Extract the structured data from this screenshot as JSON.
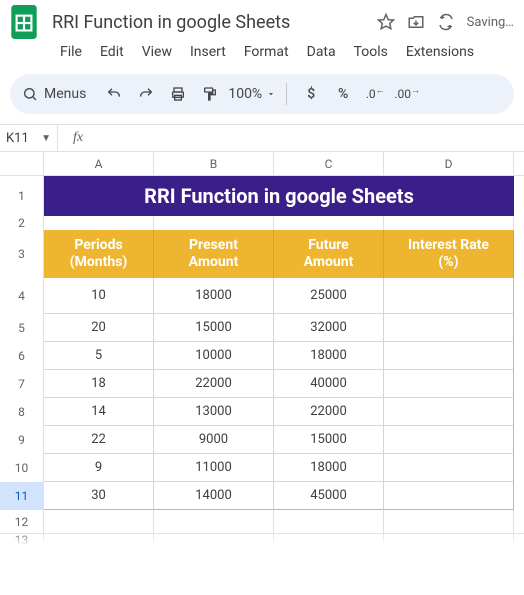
{
  "app": {
    "title": "RRI Function in google Sheets",
    "status": "Saving…",
    "menus": [
      "File",
      "Edit",
      "View",
      "Insert",
      "Format",
      "Data",
      "Tools",
      "Extensions"
    ]
  },
  "toolbar": {
    "menus_label": "Menus",
    "zoom": "100%"
  },
  "namebox": {
    "ref": "K11"
  },
  "formula_bar": {
    "value": ""
  },
  "columns": [
    "A",
    "B",
    "C",
    "D"
  ],
  "colors": {
    "banner_bg": "#3a1f8a",
    "banner_text": "#ffffff",
    "header_bg": "#edb530",
    "header_text": "#ffffff",
    "table_border": "#edd595",
    "selected_row_bg": "#d3e3fd",
    "selected_row_text": "#0b57d0"
  },
  "sheet": {
    "banner_text": "RRI Function in google Sheets",
    "headers": [
      "Periods\n(Months)",
      "Present\nAmount",
      "Future\nAmount",
      "Interest Rate\n(%)"
    ],
    "rows": [
      {
        "n": 4,
        "periods": "10",
        "present": "18000",
        "future": "25000",
        "rate": ""
      },
      {
        "n": 5,
        "periods": "20",
        "present": "15000",
        "future": "32000",
        "rate": ""
      },
      {
        "n": 6,
        "periods": "5",
        "present": "10000",
        "future": "18000",
        "rate": ""
      },
      {
        "n": 7,
        "periods": "18",
        "present": "22000",
        "future": "40000",
        "rate": ""
      },
      {
        "n": 8,
        "periods": "14",
        "present": "13000",
        "future": "22000",
        "rate": ""
      },
      {
        "n": 9,
        "periods": "22",
        "present": "9000",
        "future": "15000",
        "rate": ""
      },
      {
        "n": 10,
        "periods": "9",
        "present": "11000",
        "future": "18000",
        "rate": ""
      },
      {
        "n": 11,
        "periods": "30",
        "present": "14000",
        "future": "45000",
        "rate": ""
      }
    ],
    "selected_row": 11,
    "trailing_rows": [
      12,
      13
    ]
  }
}
